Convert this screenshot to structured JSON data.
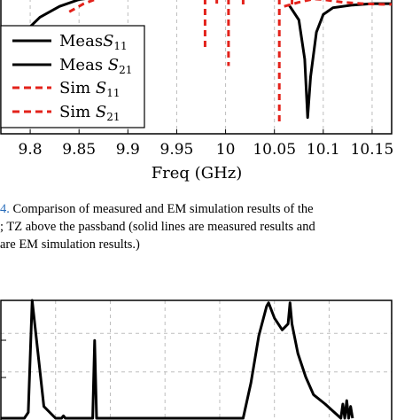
{
  "chart_data": [
    {
      "type": "line",
      "xlabel": "Freq (GHz)",
      "x_ticks": [
        "9.8",
        "9.85",
        "9.9",
        "9.95",
        "10",
        "10.05",
        "10.1",
        "10.15"
      ],
      "xlim": [
        9.77,
        10.17
      ],
      "ylim": [
        0,
        1
      ],
      "grid": true,
      "legend_position": "left",
      "legend": [
        {
          "label": "Meas",
          "sub": "11",
          "style": "solid",
          "color": "#000000"
        },
        {
          "label": "Meas ",
          "sub": "21",
          "style": "solid",
          "color": "#000000"
        },
        {
          "label": "Sim ",
          "sub": "11",
          "style": "dashed",
          "color": "#e3221b"
        },
        {
          "label": "Sim ",
          "sub": "21",
          "style": "dashed",
          "color": "#e3221b"
        }
      ],
      "series": [
        {
          "name": "Meas S11",
          "style": "solid",
          "color": "#000000",
          "x": [
            9.772,
            9.79,
            9.81,
            9.83,
            9.85,
            9.86
          ],
          "y": [
            0.56,
            0.72,
            0.86,
            0.94,
            0.99,
            1.0
          ]
        },
        {
          "name": "Meas S21",
          "style": "solid",
          "color": "#000000",
          "x": [
            10.065,
            10.075,
            10.081,
            10.084,
            10.087,
            10.093,
            10.1,
            10.11,
            10.13,
            10.15,
            10.17
          ],
          "y": [
            0.95,
            0.84,
            0.55,
            0.12,
            0.42,
            0.75,
            0.88,
            0.93,
            0.95,
            0.96,
            0.96
          ]
        },
        {
          "name": "Sim S11",
          "style": "dashed",
          "color": "#e3221b",
          "x": [
            9.84,
            9.855,
            9.87
          ],
          "y": [
            0.9,
            0.96,
            1.0
          ]
        },
        {
          "name": "Sim S11 dips",
          "style": "dashed",
          "color": "#e3221b",
          "dips": [
            {
              "x": 9.979,
              "y0": 1.0,
              "y1": 0.61
            },
            {
              "x": 9.991,
              "y0": 1.0,
              "y1": 0.96
            },
            {
              "x": 10.003,
              "y0": 1.0,
              "y1": 0.5
            },
            {
              "x": 10.018,
              "y0": 1.0,
              "y1": 0.93
            },
            {
              "x": 10.055,
              "y0": 1.0,
              "y1": 0.08
            },
            {
              "x": 10.068,
              "y0": 1.0,
              "y1": 0.93
            }
          ]
        },
        {
          "name": "Sim S21",
          "style": "dashed",
          "color": "#e3221b",
          "x": [
            10.06,
            10.075,
            10.09,
            10.1,
            10.12,
            10.14,
            10.16,
            10.17
          ],
          "y": [
            0.94,
            0.97,
            0.995,
            0.99,
            0.97,
            0.96,
            0.955,
            0.955
          ]
        }
      ]
    },
    {
      "type": "line",
      "xlim": [
        0,
        1
      ],
      "ylim": [
        0,
        1
      ],
      "grid": true,
      "series": [
        {
          "name": "trace",
          "style": "solid",
          "color": "#000000",
          "x": [
            0.0,
            0.04,
            0.06,
            0.07,
            0.08,
            0.11,
            0.14,
            0.155,
            0.16,
            0.165,
            0.21,
            0.235,
            0.24,
            0.245,
            0.3,
            0.4,
            0.5,
            0.62,
            0.64,
            0.66,
            0.68,
            0.685,
            0.7,
            0.72,
            0.735,
            0.74,
            0.745,
            0.76,
            0.78,
            0.8,
            0.83,
            0.85,
            0.87,
            0.875,
            0.88,
            0.885,
            0.89,
            0.895,
            0.9
          ],
          "y": [
            0.0,
            0.0,
            0.0,
            0.05,
            1.0,
            0.1,
            0.0,
            0.0,
            0.02,
            0.0,
            0.0,
            0.0,
            0.66,
            0.0,
            0.0,
            0.0,
            0.0,
            0.0,
            0.3,
            0.7,
            0.95,
            0.98,
            0.85,
            0.75,
            0.8,
            0.98,
            0.8,
            0.55,
            0.35,
            0.2,
            0.12,
            0.06,
            0.0,
            0.12,
            0.0,
            0.15,
            0.0,
            0.1,
            0.0
          ]
        }
      ]
    }
  ],
  "caption": {
    "fig": "4.",
    "line1": " Comparison of measured and EM simulation results of the",
    "line2": "; TZ above the passband (solid lines are measured results and",
    "line3": "are EM simulation results.)"
  }
}
